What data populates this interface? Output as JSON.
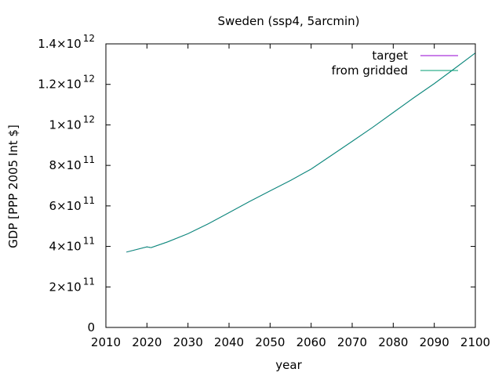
{
  "chart_data": {
    "type": "line",
    "title": "Sweden (ssp4, 5arcmin)",
    "xlabel": "year",
    "ylabel": "GDP [PPP 2005 Int $]",
    "xlim": [
      2010,
      2100
    ],
    "ylim": [
      0,
      1400000000000.0
    ],
    "x_ticks": [
      2010,
      2020,
      2030,
      2040,
      2050,
      2060,
      2070,
      2080,
      2090,
      2100
    ],
    "x_tick_labels": [
      "2010",
      "2020",
      "2030",
      "2040",
      "2050",
      "2060",
      "2070",
      "2080",
      "2090",
      "2100"
    ],
    "y_ticks": [
      0,
      200000000000.0,
      400000000000.0,
      600000000000.0,
      800000000000.0,
      1000000000000.0,
      1200000000000.0,
      1400000000000.0
    ],
    "y_tick_labels": [
      {
        "mantissa": "0",
        "exp": ""
      },
      {
        "mantissa": "2×10",
        "exp": "11"
      },
      {
        "mantissa": "4×10",
        "exp": "11"
      },
      {
        "mantissa": "6×10",
        "exp": "11"
      },
      {
        "mantissa": "8×10",
        "exp": "11"
      },
      {
        "mantissa": "1×10",
        "exp": "12"
      },
      {
        "mantissa": "1.2×10",
        "exp": "12"
      },
      {
        "mantissa": "1.4×10",
        "exp": "12"
      }
    ],
    "grid": false,
    "legend_position": "top-right",
    "series": [
      {
        "name": "target",
        "color": "#9400d3",
        "x": [
          2015,
          2020,
          2021,
          2025,
          2030,
          2035,
          2040,
          2045,
          2050,
          2055,
          2060,
          2065,
          2070,
          2075,
          2080,
          2085,
          2090,
          2095,
          2100
        ],
        "y": [
          372000000000.0,
          398000000000.0,
          394000000000.0,
          422000000000.0,
          463000000000.0,
          512000000000.0,
          567000000000.0,
          622000000000.0,
          674000000000.0,
          726000000000.0,
          782000000000.0,
          850000000000.0,
          919000000000.0,
          988000000000.0,
          1061000000000.0,
          1134000000000.0,
          1204000000000.0,
          1279000000000.0,
          1355000000000.0
        ]
      },
      {
        "name": "from gridded",
        "color": "#009e73",
        "x": [
          2015,
          2020,
          2021,
          2025,
          2030,
          2035,
          2040,
          2045,
          2050,
          2055,
          2060,
          2065,
          2070,
          2075,
          2080,
          2085,
          2090,
          2095,
          2100
        ],
        "y": [
          372000000000.0,
          398000000000.0,
          394000000000.0,
          422000000000.0,
          463000000000.0,
          512000000000.0,
          567000000000.0,
          622000000000.0,
          674000000000.0,
          726000000000.0,
          782000000000.0,
          850000000000.0,
          919000000000.0,
          988000000000.0,
          1061000000000.0,
          1134000000000.0,
          1204000000000.0,
          1279000000000.0,
          1355000000000.0
        ]
      }
    ]
  }
}
